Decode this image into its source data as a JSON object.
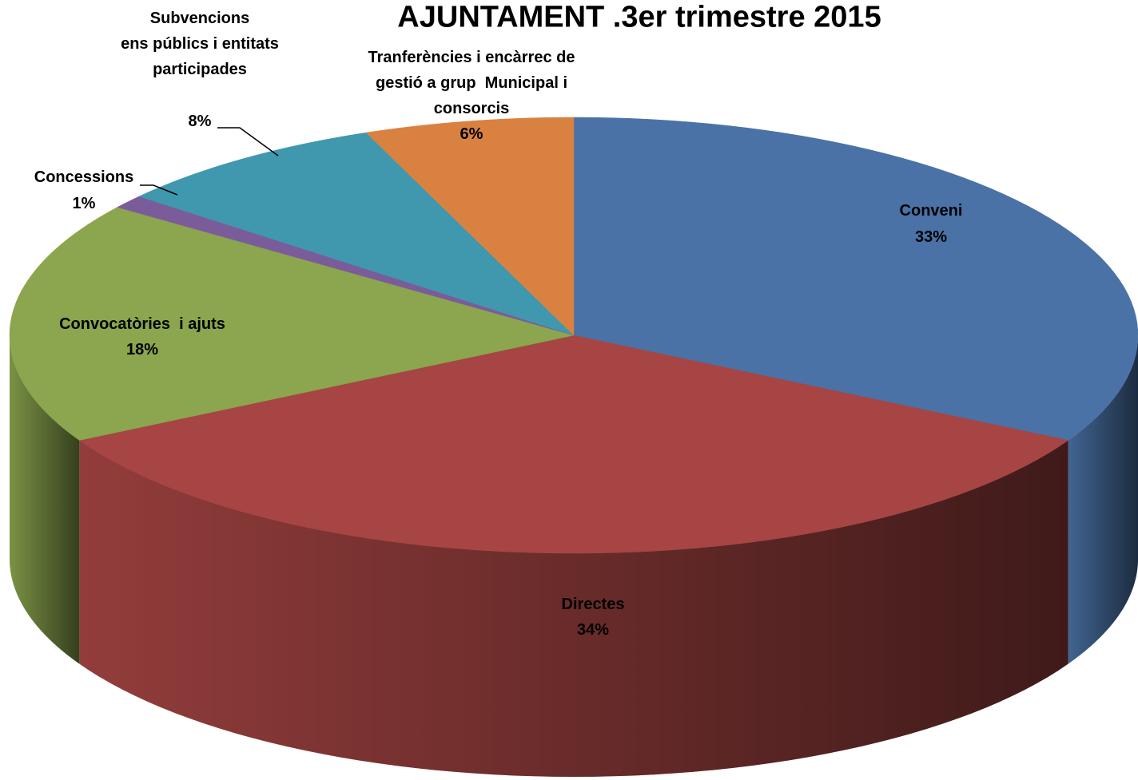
{
  "chart_data": {
    "type": "pie3d",
    "title": "AJUNTAMENT .3er trimestre 2015",
    "categories": [
      "Conveni",
      "Directes",
      "Convocatòries  i ajuts",
      "Concessions",
      "Subvencions\nens públics i entitats\nparticipades",
      "Tranferències i encàrrec de\ngestió a grup  Municipal i\nconsorcis"
    ],
    "values": [
      33,
      34,
      18,
      1,
      8,
      6
    ],
    "value_labels": [
      "33%",
      "34%",
      "18%",
      "1%",
      "8%",
      "6%"
    ],
    "colors": [
      "#4a72a6",
      "#a64543",
      "#8ba64e",
      "#7b5c9b",
      "#3f98ae",
      "#d98140"
    ]
  }
}
